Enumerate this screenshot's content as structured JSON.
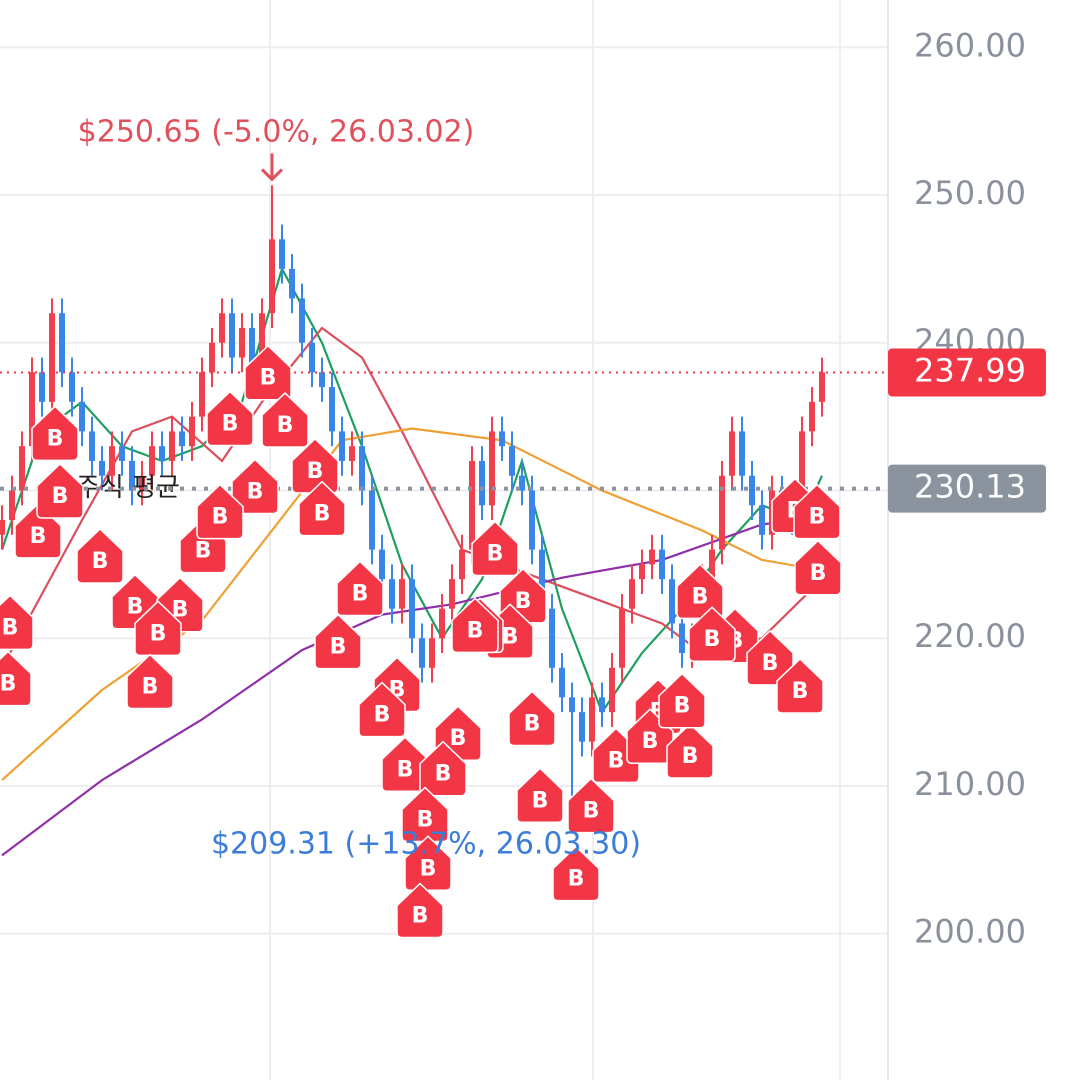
{
  "chart_data": {
    "type": "candlestick",
    "xlim": [
      -0.2,
      88.6
    ],
    "ylim": [
      190.1,
      263.2
    ],
    "yticks": [
      {
        "value": 200,
        "label": "200.00"
      },
      {
        "value": 210,
        "label": "210.00"
      },
      {
        "value": 220,
        "label": "220.00"
      },
      {
        "value": 230,
        "label": "230.00"
      },
      {
        "value": 240,
        "label": "240.00"
      },
      {
        "value": 250,
        "label": "250.00"
      },
      {
        "value": 260,
        "label": "260.00"
      }
    ],
    "grid": true,
    "up_color": "#f0404f",
    "down_color": "#3a86e8",
    "x": [
      0,
      1,
      2,
      3,
      4,
      5,
      6,
      7,
      8,
      9,
      10,
      11,
      12,
      13,
      14,
      15,
      16,
      17,
      18,
      19,
      20,
      21,
      22,
      23,
      24,
      25,
      26,
      27,
      28,
      29,
      30,
      31,
      32,
      33,
      34,
      35,
      36,
      37,
      38,
      39,
      40,
      41,
      42,
      43,
      44,
      45,
      46,
      47,
      48,
      49,
      50,
      51,
      52,
      53,
      54,
      55,
      56,
      57,
      58,
      59,
      60,
      61,
      62,
      63,
      64,
      65,
      66,
      67,
      68,
      69,
      70,
      71,
      72,
      73,
      74,
      75,
      76,
      77,
      78,
      79,
      80,
      81,
      82
    ],
    "open": [
      227,
      228,
      230,
      233,
      238,
      236,
      242,
      238,
      236,
      234,
      232,
      231,
      233,
      232,
      230,
      231,
      233,
      232,
      234,
      233,
      235,
      238,
      240,
      242,
      239,
      241,
      238,
      242,
      247,
      245,
      243,
      240,
      238,
      237,
      234,
      232,
      233,
      230,
      226,
      224,
      222,
      224,
      220,
      218,
      220,
      222,
      224,
      226,
      232,
      229,
      234,
      233,
      231,
      230,
      226,
      222,
      218,
      216,
      215,
      213,
      216,
      215,
      218,
      222,
      224,
      225,
      226,
      224,
      221,
      219,
      220,
      224,
      226,
      231,
      234,
      231,
      229,
      227,
      230,
      229,
      228,
      234,
      236
    ],
    "high": [
      229,
      231,
      234,
      239,
      239,
      243,
      243,
      239,
      237,
      235,
      233,
      234,
      234,
      233,
      232,
      234,
      234,
      235,
      235,
      236,
      239,
      241,
      243,
      243,
      242,
      242,
      243,
      250.65,
      248,
      246,
      244,
      241,
      239,
      238,
      235,
      234,
      234,
      231,
      227,
      225,
      225,
      225,
      221,
      221,
      223,
      225,
      227,
      233,
      233,
      235,
      235,
      234,
      232,
      231,
      227,
      223,
      219,
      217,
      216,
      217,
      217,
      219,
      223,
      225,
      226,
      227,
      227,
      225,
      222,
      221,
      225,
      227,
      232,
      235,
      235,
      232,
      230,
      231,
      231,
      230,
      235,
      237,
      239
    ],
    "low": [
      226,
      227,
      229,
      232,
      235,
      235,
      237,
      235,
      233,
      231,
      230,
      230,
      231,
      229,
      229,
      230,
      231,
      231,
      232,
      232,
      234,
      237,
      239,
      238,
      238,
      237,
      237,
      241,
      244,
      242,
      239,
      237,
      236,
      233,
      231,
      231,
      229,
      225,
      223,
      221,
      221,
      219,
      217,
      217,
      219,
      221,
      223,
      225,
      228,
      228,
      232,
      230,
      229,
      225,
      221,
      217,
      215,
      209.31,
      212,
      212,
      214,
      214,
      217,
      221,
      223,
      224,
      223,
      220,
      218,
      218,
      219,
      223,
      225,
      230,
      230,
      228,
      226,
      226,
      228,
      227,
      227,
      233,
      235
    ],
    "close": [
      228,
      230,
      233,
      238,
      236,
      242,
      238,
      236,
      234,
      232,
      231,
      233,
      232,
      230,
      231,
      233,
      232,
      234,
      233,
      235,
      238,
      240,
      242,
      239,
      241,
      238,
      242,
      247,
      245,
      243,
      240,
      238,
      237,
      234,
      232,
      233,
      230,
      226,
      224,
      222,
      224,
      220,
      218,
      220,
      222,
      224,
      226,
      232,
      229,
      234,
      233,
      231,
      230,
      226,
      222,
      218,
      216,
      215,
      213,
      216,
      215,
      218,
      222,
      224,
      225,
      226,
      224,
      221,
      219,
      220,
      224,
      226,
      231,
      234,
      231,
      229,
      227,
      230,
      229,
      228,
      234,
      236,
      237.99
    ],
    "moving_averages": [
      {
        "color": "#1f9e5e",
        "x": [
          0,
          4,
          8,
          12,
          16,
          20,
          24,
          28,
          32,
          36,
          40,
          44,
          48,
          52,
          56,
          60,
          64,
          68,
          72,
          76,
          80,
          82
        ],
        "values": [
          226,
          234,
          236,
          233,
          232,
          233,
          236,
          245,
          240,
          233,
          225,
          220,
          224,
          232,
          222,
          215,
          219,
          222,
          226,
          229,
          228,
          231
        ]
      },
      {
        "color": "#d9505d",
        "x": [
          0,
          8,
          13,
          17,
          22,
          26,
          32,
          36,
          40,
          46,
          54,
          62,
          66,
          70,
          76,
          82
        ],
        "values": [
          218,
          228,
          234,
          235,
          232,
          236,
          241,
          239,
          234,
          226,
          224,
          222,
          221,
          219,
          220,
          224
        ]
      },
      {
        "color": "#f0a032",
        "x": [
          0,
          10,
          20,
          27,
          34,
          41,
          50,
          60,
          70,
          76,
          82
        ],
        "values": [
          210.4,
          216.5,
          221.2,
          227.3,
          233.4,
          234.2,
          233.4,
          230,
          227.3,
          225.3,
          224.6
        ]
      },
      {
        "color": "#8e30a8",
        "x": [
          0,
          10,
          20,
          30,
          38,
          45,
          56,
          66,
          76,
          82
        ],
        "values": [
          205.3,
          210.4,
          214.5,
          219.2,
          221.6,
          222.3,
          224.1,
          225.3,
          227.7,
          228.3
        ]
      }
    ],
    "last_price": {
      "value": 237.99,
      "label": "237.99",
      "color": "#f23645"
    },
    "avg_price": {
      "value": 230.13,
      "label": "230.13",
      "color": "#8a939e",
      "name": "주식 평균"
    },
    "annotations": [
      {
        "text": "$250.65 (-5.0%, 26.03.02)",
        "color": "#e0505c"
      },
      {
        "text": "$209.31 (+13.7%, 26.03.30)",
        "color": "#3b7dd8"
      }
    ],
    "markers": {
      "label": "B",
      "color": "#f23645",
      "x": [
        5.3,
        26.6,
        28.3,
        22.8,
        31.3,
        25.3,
        32,
        3.6,
        0.8,
        0.6,
        13.3,
        17.8,
        15.6,
        20.1,
        14.8,
        35.8,
        33.6,
        39.5,
        38,
        45.6,
        40.3,
        44.1,
        42.3,
        42.6,
        41.8,
        49.3,
        52.1,
        50.8,
        47.8,
        53,
        53.8,
        58.9,
        57.4,
        61.4,
        65.6,
        64.8,
        68.8,
        68,
        69.8,
        73.3,
        71,
        76.8,
        79.8,
        79.3,
        81.6,
        81.5,
        47.3,
        21.8,
        9.8,
        5.8
      ],
      "prices": [
        233.6,
        237.7,
        234.5,
        234.6,
        231.4,
        230,
        228.5,
        227,
        220.8,
        217,
        222.2,
        222,
        220.4,
        226,
        216.8,
        223.1,
        219.5,
        216.6,
        214.9,
        213.3,
        211.2,
        210.9,
        207.8,
        204.5,
        201.3,
        225.8,
        222.6,
        220.2,
        220.6,
        214.3,
        209.1,
        208.4,
        203.8,
        211.8,
        215.1,
        213.1,
        212.1,
        215.5,
        222.9,
        219.9,
        220,
        218.4,
        216.5,
        228.7,
        224.5,
        228.3,
        220.6,
        228.3,
        225.3,
        229.7
      ]
    }
  }
}
